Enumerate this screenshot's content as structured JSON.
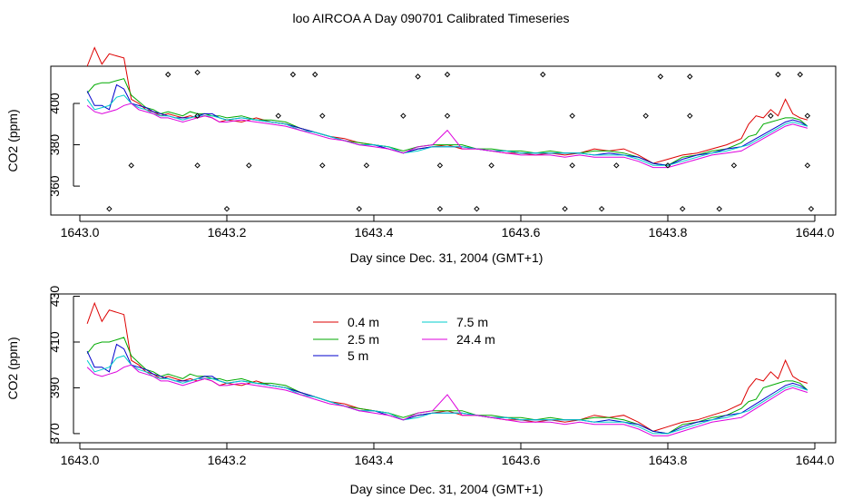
{
  "figure": {
    "title": "loo AIRCOA A  Day 090701  Calibrated Timeseries"
  },
  "chart_data": [
    {
      "type": "line",
      "xlabel": "Day since Dec. 31, 2004 (GMT+1)",
      "ylabel": "CO2 (ppm)",
      "xlim": [
        1643.0,
        1644.0
      ],
      "ylim": [
        346,
        418
      ],
      "xticks": [
        "1643.0",
        "1643.2",
        "1643.4",
        "1643.6",
        "1643.8",
        "1644.0"
      ],
      "yticks": [
        "360",
        "380",
        "400"
      ],
      "grid": false,
      "legend": null,
      "markers": {
        "x": [
          1643.04,
          1643.07,
          1643.12,
          1643.16,
          1643.16,
          1643.16,
          1643.2,
          1643.23,
          1643.27,
          1643.29,
          1643.32,
          1643.33,
          1643.33,
          1643.38,
          1643.39,
          1643.44,
          1643.46,
          1643.49,
          1643.49,
          1643.5,
          1643.5,
          1643.54,
          1643.56,
          1643.63,
          1643.66,
          1643.67,
          1643.67,
          1643.71,
          1643.73,
          1643.77,
          1643.79,
          1643.8,
          1643.82,
          1643.83,
          1643.83,
          1643.87,
          1643.89,
          1643.94,
          1643.95,
          1643.98,
          1643.99,
          1643.99,
          1643.995
        ],
        "y": [
          349,
          370,
          414,
          415,
          394,
          370,
          349,
          370,
          394,
          414,
          414,
          394,
          370,
          349,
          370,
          394,
          413,
          349,
          370,
          394,
          414,
          349,
          370,
          414,
          349,
          394,
          370,
          349,
          370,
          394,
          413,
          370,
          349,
          413,
          394,
          349,
          370,
          394,
          414,
          414,
          394,
          370,
          349
        ]
      },
      "series": [
        {
          "name": "0.4 m",
          "color": "#dd0000",
          "x": [
            1643.01,
            1643.02,
            1643.03,
            1643.04,
            1643.05,
            1643.06,
            1643.07,
            1643.08,
            1643.09,
            1643.1,
            1643.11,
            1643.12,
            1643.13,
            1643.14,
            1643.15,
            1643.16,
            1643.17,
            1643.18,
            1643.19,
            1643.2,
            1643.22,
            1643.24,
            1643.26,
            1643.28,
            1643.3,
            1643.32,
            1643.34,
            1643.36,
            1643.38,
            1643.4,
            1643.42,
            1643.44,
            1643.46,
            1643.48,
            1643.5,
            1643.52,
            1643.54,
            1643.56,
            1643.58,
            1643.6,
            1643.62,
            1643.64,
            1643.66,
            1643.68,
            1643.7,
            1643.72,
            1643.74,
            1643.76,
            1643.78,
            1643.8,
            1643.82,
            1643.84,
            1643.86,
            1643.88,
            1643.9,
            1643.91,
            1643.92,
            1643.93,
            1643.94,
            1643.95,
            1643.96,
            1643.97,
            1643.98,
            1643.99
          ],
          "y": [
            418,
            427,
            419,
            424,
            423,
            422,
            402,
            400,
            397,
            396,
            394,
            395,
            394,
            393,
            394,
            393,
            394,
            393,
            391,
            392,
            391,
            393,
            391,
            390,
            388,
            386,
            384,
            383,
            381,
            380,
            379,
            376,
            378,
            379,
            380,
            378,
            378,
            377,
            376,
            376,
            375,
            376,
            375,
            376,
            378,
            377,
            378,
            375,
            371,
            373,
            375,
            376,
            378,
            380,
            383,
            390,
            394,
            393,
            397,
            394,
            402,
            395,
            393,
            392
          ]
        },
        {
          "name": "2.5 m",
          "color": "#00aa00",
          "x": [
            1643.01,
            1643.02,
            1643.03,
            1643.04,
            1643.05,
            1643.06,
            1643.07,
            1643.08,
            1643.09,
            1643.1,
            1643.11,
            1643.12,
            1643.13,
            1643.14,
            1643.15,
            1643.16,
            1643.17,
            1643.18,
            1643.19,
            1643.2,
            1643.22,
            1643.24,
            1643.26,
            1643.28,
            1643.3,
            1643.32,
            1643.34,
            1643.36,
            1643.38,
            1643.4,
            1643.42,
            1643.44,
            1643.46,
            1643.48,
            1643.5,
            1643.52,
            1643.54,
            1643.56,
            1643.58,
            1643.6,
            1643.62,
            1643.64,
            1643.66,
            1643.68,
            1643.7,
            1643.72,
            1643.74,
            1643.76,
            1643.78,
            1643.8,
            1643.82,
            1643.84,
            1643.86,
            1643.88,
            1643.9,
            1643.91,
            1643.92,
            1643.93,
            1643.94,
            1643.95,
            1643.96,
            1643.97,
            1643.98,
            1643.99
          ],
          "y": [
            405,
            409,
            410,
            410,
            411,
            412,
            404,
            401,
            398,
            397,
            395,
            396,
            395,
            394,
            396,
            395,
            395,
            394,
            394,
            393,
            394,
            392,
            392,
            391,
            388,
            386,
            384,
            382,
            381,
            380,
            379,
            377,
            379,
            380,
            380,
            380,
            378,
            378,
            377,
            377,
            376,
            377,
            376,
            376,
            377,
            377,
            376,
            374,
            371,
            370,
            374,
            375,
            377,
            378,
            381,
            384,
            385,
            390,
            391,
            392,
            393,
            393,
            392,
            389
          ]
        },
        {
          "name": "5 m",
          "color": "#0000cc",
          "x": [
            1643.01,
            1643.02,
            1643.03,
            1643.04,
            1643.05,
            1643.06,
            1643.07,
            1643.08,
            1643.09,
            1643.1,
            1643.11,
            1643.12,
            1643.13,
            1643.14,
            1643.15,
            1643.16,
            1643.17,
            1643.18,
            1643.19,
            1643.2,
            1643.22,
            1643.24,
            1643.26,
            1643.28,
            1643.3,
            1643.32,
            1643.34,
            1643.36,
            1643.38,
            1643.4,
            1643.42,
            1643.44,
            1643.46,
            1643.48,
            1643.5,
            1643.52,
            1643.54,
            1643.56,
            1643.58,
            1643.6,
            1643.62,
            1643.64,
            1643.66,
            1643.68,
            1643.7,
            1643.72,
            1643.74,
            1643.76,
            1643.78,
            1643.8,
            1643.82,
            1643.84,
            1643.86,
            1643.88,
            1643.9,
            1643.91,
            1643.92,
            1643.93,
            1643.94,
            1643.95,
            1643.96,
            1643.97,
            1643.98,
            1643.99
          ],
          "y": [
            406,
            399,
            399,
            397,
            409,
            407,
            400,
            399,
            398,
            396,
            395,
            394,
            393,
            393,
            393,
            394,
            395,
            395,
            393,
            392,
            393,
            392,
            391,
            390,
            388,
            386,
            384,
            382,
            380,
            380,
            378,
            376,
            378,
            379,
            379,
            379,
            378,
            377,
            377,
            376,
            376,
            376,
            376,
            376,
            375,
            376,
            375,
            374,
            371,
            370,
            373,
            375,
            376,
            378,
            379,
            381,
            383,
            385,
            387,
            389,
            391,
            392,
            391,
            389
          ]
        },
        {
          "name": "7.5 m",
          "color": "#00cccc",
          "x": [
            1643.01,
            1643.02,
            1643.03,
            1643.04,
            1643.05,
            1643.06,
            1643.07,
            1643.08,
            1643.09,
            1643.1,
            1643.11,
            1643.12,
            1643.13,
            1643.14,
            1643.15,
            1643.16,
            1643.17,
            1643.18,
            1643.19,
            1643.2,
            1643.22,
            1643.24,
            1643.26,
            1643.28,
            1643.3,
            1643.32,
            1643.34,
            1643.36,
            1643.38,
            1643.4,
            1643.42,
            1643.44,
            1643.46,
            1643.48,
            1643.5,
            1643.52,
            1643.54,
            1643.56,
            1643.58,
            1643.6,
            1643.62,
            1643.64,
            1643.66,
            1643.68,
            1643.7,
            1643.72,
            1643.74,
            1643.76,
            1643.78,
            1643.8,
            1643.82,
            1643.84,
            1643.86,
            1643.88,
            1643.9,
            1643.91,
            1643.92,
            1643.93,
            1643.94,
            1643.95,
            1643.96,
            1643.97,
            1643.98,
            1643.99
          ],
          "y": [
            402,
            397,
            398,
            399,
            403,
            404,
            400,
            398,
            397,
            395,
            394,
            394,
            393,
            392,
            393,
            394,
            394,
            394,
            393,
            392,
            393,
            392,
            391,
            390,
            387,
            386,
            384,
            382,
            380,
            380,
            379,
            376,
            377,
            379,
            379,
            379,
            378,
            377,
            377,
            376,
            376,
            376,
            376,
            376,
            375,
            375,
            375,
            373,
            370,
            370,
            372,
            374,
            376,
            377,
            379,
            380,
            382,
            384,
            386,
            388,
            390,
            391,
            390,
            389
          ]
        },
        {
          "name": "24.4 m",
          "color": "#dd00dd",
          "x": [
            1643.01,
            1643.02,
            1643.03,
            1643.04,
            1643.05,
            1643.06,
            1643.07,
            1643.08,
            1643.09,
            1643.1,
            1643.11,
            1643.12,
            1643.13,
            1643.14,
            1643.15,
            1643.16,
            1643.17,
            1643.18,
            1643.19,
            1643.2,
            1643.22,
            1643.24,
            1643.26,
            1643.28,
            1643.3,
            1643.32,
            1643.34,
            1643.36,
            1643.38,
            1643.4,
            1643.42,
            1643.44,
            1643.46,
            1643.48,
            1643.5,
            1643.52,
            1643.54,
            1643.56,
            1643.58,
            1643.6,
            1643.62,
            1643.64,
            1643.66,
            1643.68,
            1643.7,
            1643.72,
            1643.74,
            1643.76,
            1643.78,
            1643.8,
            1643.82,
            1643.84,
            1643.86,
            1643.88,
            1643.9,
            1643.91,
            1643.92,
            1643.93,
            1643.94,
            1643.95,
            1643.96,
            1643.97,
            1643.98,
            1643.99
          ],
          "y": [
            399,
            396,
            395,
            396,
            397,
            399,
            400,
            397,
            396,
            395,
            393,
            393,
            392,
            391,
            392,
            393,
            394,
            393,
            391,
            391,
            392,
            391,
            390,
            389,
            387,
            385,
            383,
            382,
            380,
            379,
            378,
            376,
            379,
            380,
            387,
            378,
            378,
            377,
            376,
            375,
            375,
            375,
            374,
            375,
            374,
            374,
            374,
            372,
            369,
            369,
            371,
            373,
            375,
            376,
            377,
            379,
            381,
            383,
            385,
            387,
            389,
            390,
            389,
            388
          ]
        }
      ]
    },
    {
      "type": "line",
      "xlabel": "Day since Dec. 31, 2004 (GMT+1)",
      "ylabel": "CO2 (ppm)",
      "xlim": [
        1643.0,
        1644.0
      ],
      "ylim": [
        366,
        431
      ],
      "xticks": [
        "1643.0",
        "1643.2",
        "1643.4",
        "1643.6",
        "1643.8",
        "1644.0"
      ],
      "yticks": [
        "370",
        "390",
        "410",
        "430"
      ],
      "grid": false,
      "legend": "top-center",
      "series_ref": "same as panel 1"
    }
  ]
}
